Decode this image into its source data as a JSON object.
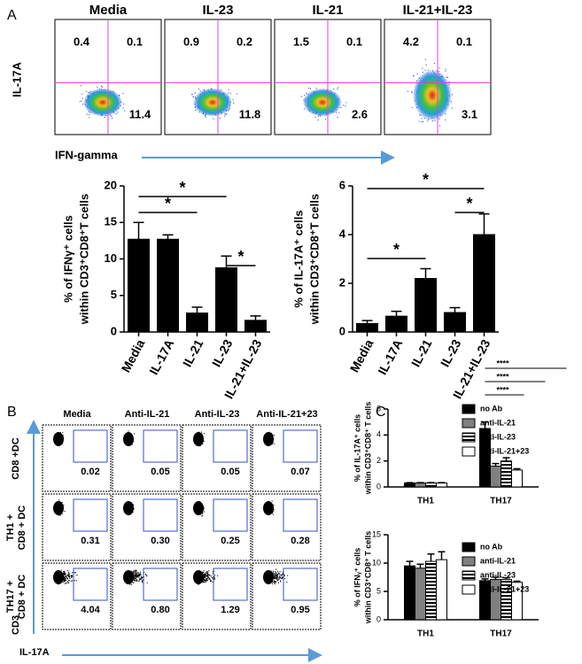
{
  "chart_data": [
    {
      "type": "bar",
      "ylabel": [
        "% of IFNγ⁺ cells",
        "within CD3⁺CD8⁺T cells"
      ],
      "categories": [
        "Media",
        "IL-17A",
        "IL-21",
        "IL-23",
        "IL-21+IL-23"
      ],
      "values": [
        12.7,
        12.7,
        2.6,
        8.8,
        1.6
      ],
      "errors": [
        2.3,
        0.6,
        0.8,
        1.6,
        0.6
      ],
      "color": "#000000",
      "ylim": [
        0,
        20
      ],
      "yticks": [
        0,
        5,
        10,
        15,
        20
      ],
      "brackets": [
        {
          "from": "Media",
          "to": "IL-21",
          "label": "*"
        },
        {
          "from": "Media",
          "to": "IL-23",
          "label": "*"
        },
        {
          "from": "IL-23",
          "to": "IL-21+IL-23",
          "label": "*"
        }
      ]
    },
    {
      "type": "bar",
      "ylabel": [
        "% of IL-17A⁺ cells",
        "within CD3⁺CD8⁺T cells"
      ],
      "categories": [
        "Media",
        "IL-17A",
        "IL-21",
        "IL-23",
        "IL-21+IL-23"
      ],
      "values": [
        0.35,
        0.65,
        2.2,
        0.8,
        4.0
      ],
      "errors": [
        0.12,
        0.2,
        0.4,
        0.2,
        0.85
      ],
      "color": "#000000",
      "ylim": [
        0,
        6
      ],
      "yticks": [
        0,
        2,
        4,
        6
      ],
      "brackets": [
        {
          "from": "Media",
          "to": "IL-21",
          "label": "*"
        },
        {
          "from": "Media",
          "to": "IL-21+IL-23",
          "label": "*"
        },
        {
          "from": "IL-23",
          "to": "IL-21+IL-23",
          "label": "*"
        }
      ]
    },
    {
      "type": "grouped_bar",
      "ylabel": [
        "% of IL-17A⁺ cells",
        "within CD3⁺CD8⁺ T cells"
      ],
      "categories": [
        "TH1",
        "TH17"
      ],
      "series": [
        {
          "name": "no Ab",
          "color": "#000000",
          "values": [
            0.3,
            4.5
          ],
          "errors": [
            0.03,
            0.5
          ]
        },
        {
          "name": "anti-IL-21",
          "color": "#808080",
          "values": [
            0.3,
            1.6
          ],
          "errors": [
            0.03,
            0.2
          ]
        },
        {
          "name": "anti-IL-23",
          "color": "#000000",
          "fill": "stripes",
          "values": [
            0.3,
            2.0
          ],
          "errors": [
            0.03,
            0.25
          ]
        },
        {
          "name": "anti-IL-21+23",
          "color": "#ffffff",
          "values": [
            0.3,
            1.3
          ],
          "errors": [
            0.03,
            0.1
          ]
        }
      ],
      "ylim": [
        0,
        6
      ],
      "yticks": [
        0,
        2,
        4,
        6
      ],
      "brackets": [
        {
          "category": "TH17",
          "from": "no Ab",
          "to": "anti-IL-21+23",
          "label": "****"
        },
        {
          "category": "TH17",
          "from": "no Ab",
          "to": "anti-IL-23",
          "label": "****"
        },
        {
          "category": "TH17",
          "from": "no Ab",
          "to": "anti-IL-21",
          "label": "****"
        }
      ]
    },
    {
      "type": "grouped_bar",
      "ylabel": [
        "% of IFNᵧ⁺ cells",
        "within CD3⁺CD8⁺ T cells"
      ],
      "categories": [
        "TH1",
        "TH17"
      ],
      "series": [
        {
          "name": "no Ab",
          "color": "#000000",
          "values": [
            9.5,
            6.9
          ],
          "errors": [
            0.8,
            0.3
          ]
        },
        {
          "name": "anti-IL-21",
          "color": "#808080",
          "values": [
            9.1,
            7.1
          ],
          "errors": [
            0.7,
            0.4
          ]
        },
        {
          "name": "anti-IL-23",
          "color": "#000000",
          "fill": "stripes",
          "values": [
            10.3,
            7.1
          ],
          "errors": [
            1.3,
            0.3
          ]
        },
        {
          "name": "anti-IL-21+23",
          "color": "#ffffff",
          "values": [
            10.6,
            6.6
          ],
          "errors": [
            1.4,
            0.2
          ]
        }
      ],
      "ylim": [
        0,
        15
      ],
      "yticks": [
        0,
        5,
        10,
        15
      ],
      "brackets": []
    }
  ],
  "panels": [
    "A",
    "B",
    "C"
  ],
  "flow_a": {
    "ylabel": "IL-17A",
    "xlabel": "IFN-gamma",
    "plots": [
      {
        "title": "Media",
        "upper_left": 0.4,
        "upper_right": 0.1,
        "lower_right": 11.4
      },
      {
        "title": "IL-23",
        "upper_left": 0.9,
        "upper_right": 0.2,
        "lower_right": 11.8
      },
      {
        "title": "IL-21",
        "upper_left": 1.5,
        "upper_right": 0.1,
        "lower_right": 2.6
      },
      {
        "title": "IL-21+IL-23",
        "upper_left": 4.2,
        "upper_right": 0.1,
        "lower_right": 3.1
      }
    ]
  },
  "flow_b": {
    "columns": [
      "Media",
      "Anti-IL-21",
      "Anti-IL-23",
      "Anti-IL-21+23"
    ],
    "rows": [
      {
        "label": [
          "CD8 +DC"
        ],
        "values": [
          "0.02",
          "0.05",
          "0.05",
          "0.07"
        ]
      },
      {
        "label": [
          "TH1 +",
          "CD8 + DC"
        ],
        "values": [
          "0.31",
          "0.30",
          "0.25",
          "0.28"
        ]
      },
      {
        "label": [
          "TH17 +",
          "CD8 + DC"
        ],
        "values": [
          "4.04",
          "0.80",
          "1.29",
          "0.95"
        ]
      }
    ],
    "ylabel": "CD3",
    "xlabel": "IL-17A"
  }
}
